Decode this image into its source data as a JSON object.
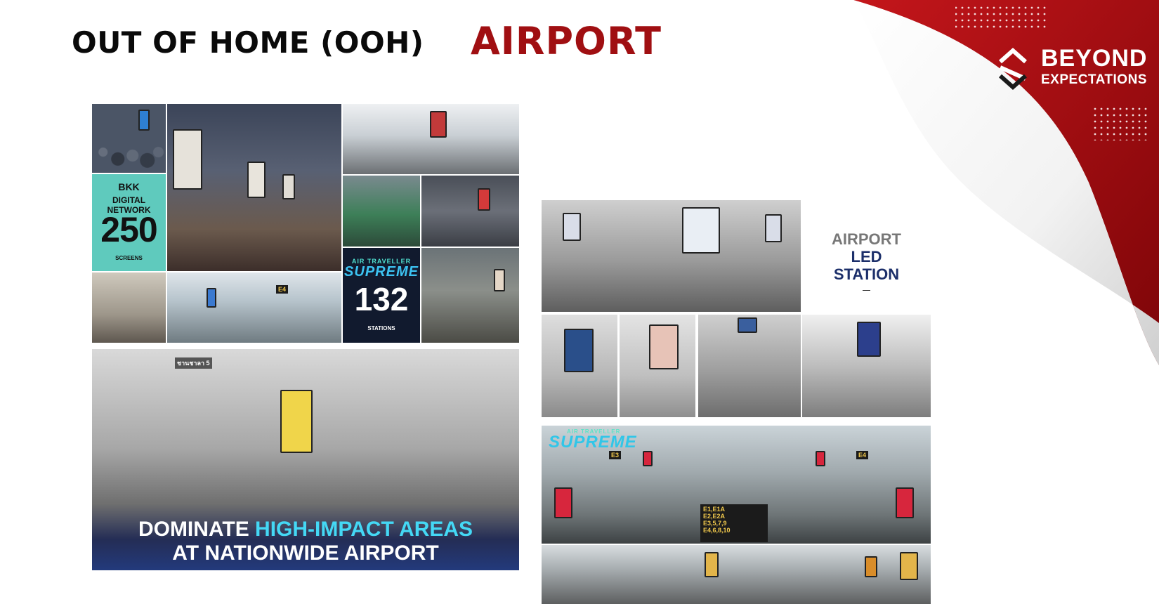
{
  "header": {
    "title": "OUT OF HOME (OOH)",
    "subtitle": "AIRPORT"
  },
  "brand": {
    "line1": "BEYOND",
    "line2": "EXPECTATIONS"
  },
  "bkk_panel": {
    "line1": "BKK",
    "line2": "DIGITAL NETWORK",
    "number": "250",
    "line3": "SCREENS"
  },
  "supreme_panel": {
    "line1": "AIR TRAVELLER",
    "line2": "SUPREME",
    "number": "132",
    "line3": "STATIONS"
  },
  "dominate_banner": {
    "line1_plain": "DOMINATE ",
    "line1_highlight": "HIGH-IMPACT AREAS",
    "line2": "AT NATIONWIDE AIRPORT"
  },
  "led_station": {
    "line1": "AIRPORT",
    "line2": "LED",
    "line3": "STATION"
  },
  "terminal_photo": {
    "supreme_label": "SUPREME",
    "supreme_small": "AIR TRAVELLER",
    "gate_sign": "E4",
    "gate_sign2": "E3",
    "directory": [
      "E1,E1A",
      "E2,E2A",
      "E3,5,7,9",
      "E4,6,8,10"
    ]
  },
  "colors": {
    "accent_red": "#a00f12",
    "teal_panel": "#5fcabd",
    "navy_panel": "#111a2e",
    "highlight_cyan": "#44d8f5"
  }
}
